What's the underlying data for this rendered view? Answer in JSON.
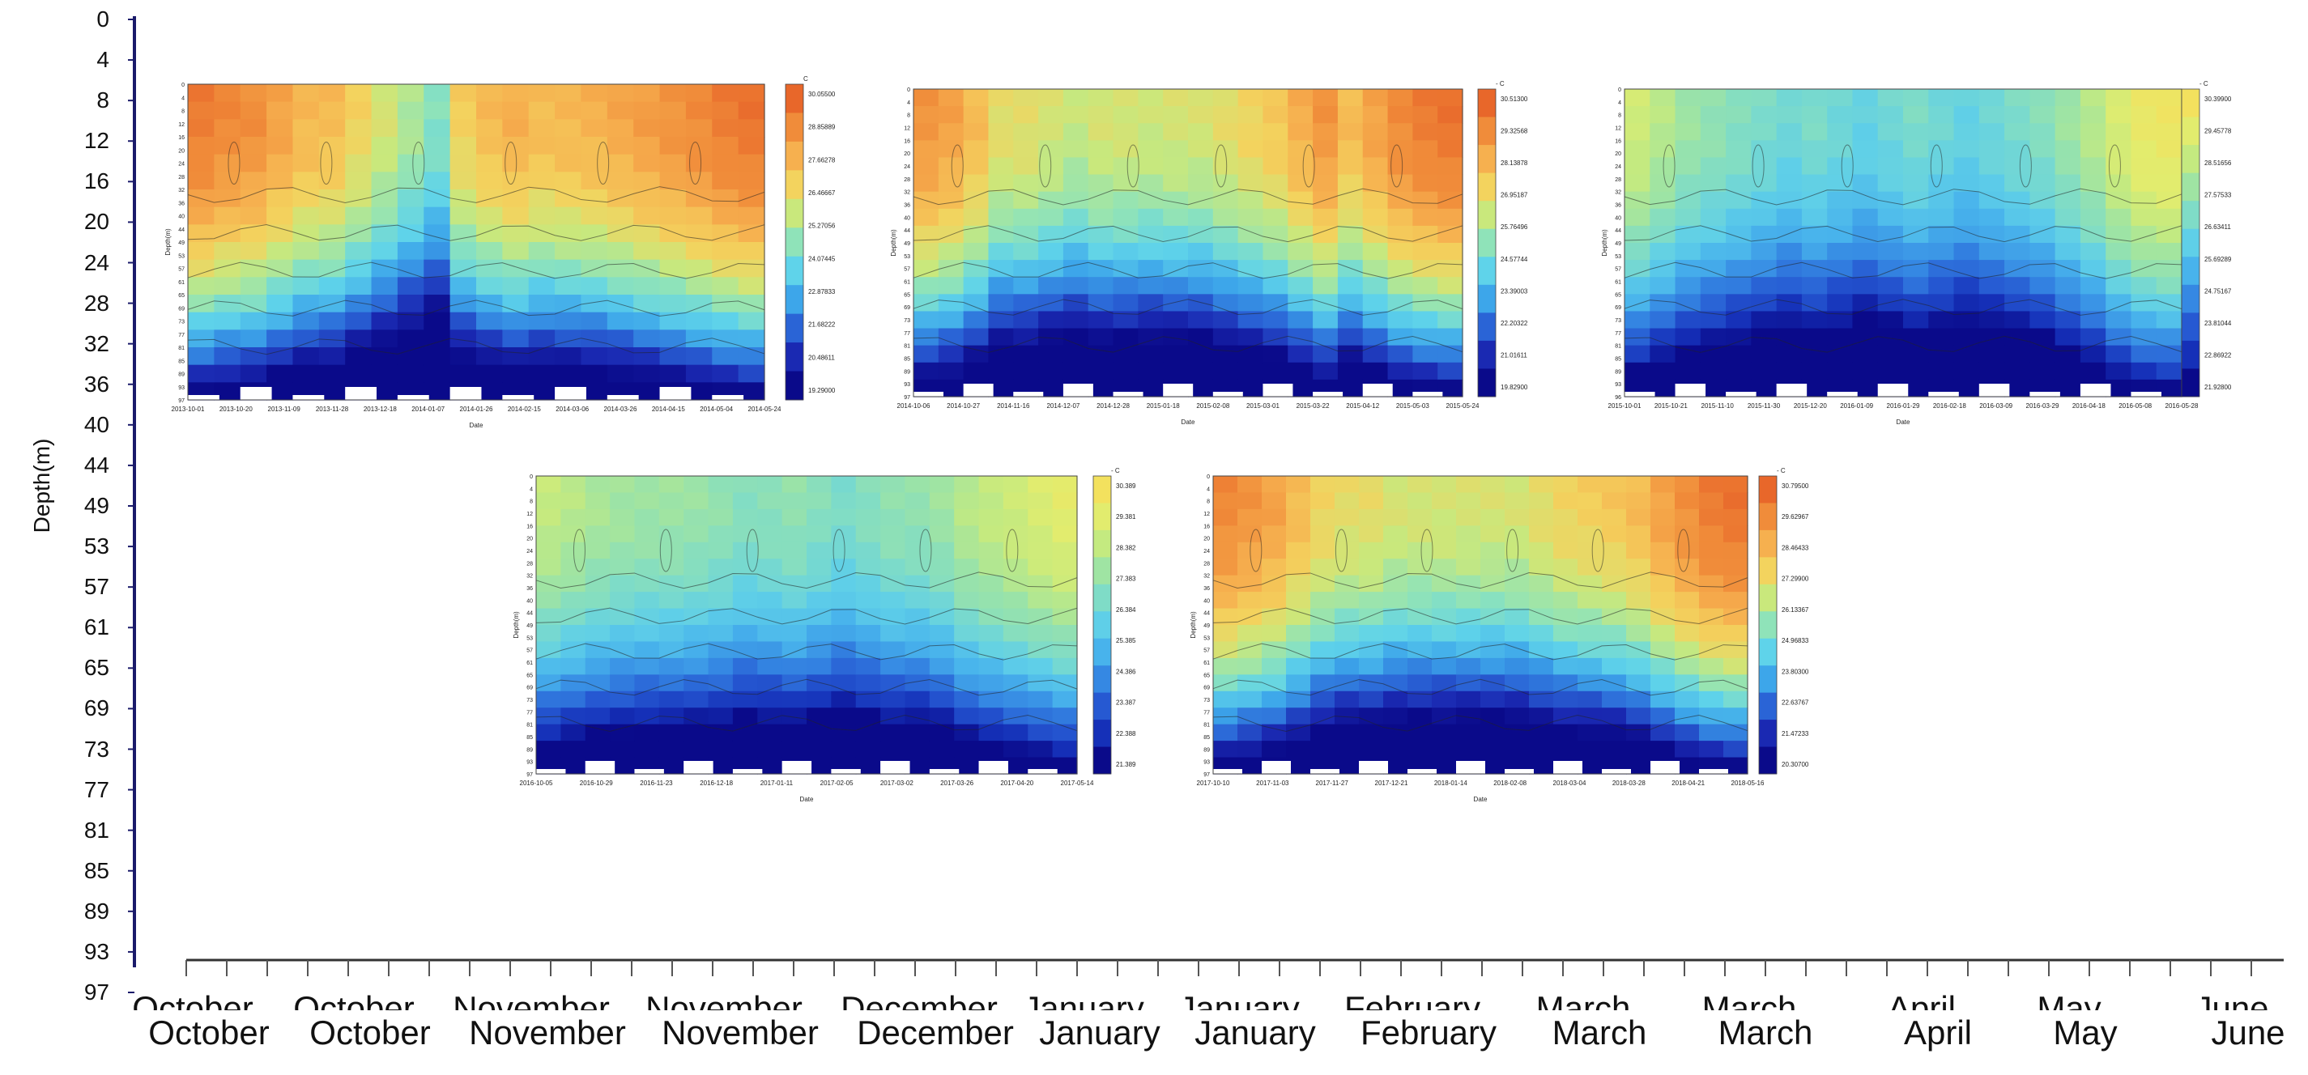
{
  "chart_data": {
    "type": "heatmap",
    "outer_axes": {
      "ylabel": "Depth(m)",
      "y_ticks": [
        "0",
        "4",
        "8",
        "12",
        "16",
        "20",
        "24",
        "28",
        "32",
        "36",
        "40",
        "44",
        "49",
        "53",
        "57",
        "61",
        "65",
        "69",
        "73",
        "77",
        "81",
        "85",
        "89",
        "93",
        "97"
      ],
      "x_ticks": [
        "October",
        "October",
        "November",
        "November",
        "December",
        "January",
        "January",
        "February",
        "March",
        "March",
        "April",
        "May",
        "June"
      ],
      "x_ticks_clipped": [
        "October",
        "October",
        "November",
        "November",
        "December",
        "January",
        "January",
        "February",
        "March",
        "March",
        "April",
        "May",
        "June"
      ]
    },
    "panels": [
      {
        "colorbar_unit": "C",
        "colorbar_ticks": [
          "30.05500",
          "28.85889",
          "27.66278",
          "26.46667",
          "25.27056",
          "24.07445",
          "22.87833",
          "21.68222",
          "20.48611",
          "19.29000"
        ],
        "colorbar_colors": [
          "#e8672a",
          "#f08c3a",
          "#f6b04f",
          "#f3d35e",
          "#c9e87c",
          "#8fe3b9",
          "#5fd3ea",
          "#3da6ea",
          "#2a64d6",
          "#1a29b2",
          "#0a0a8a"
        ],
        "ylabel": "Depth(m)",
        "xlabel": "Date",
        "depth_ticks": [
          "0",
          "4",
          "8",
          "12",
          "16",
          "20",
          "24",
          "28",
          "32",
          "36",
          "40",
          "44",
          "49",
          "53",
          "57",
          "61",
          "65",
          "69",
          "73",
          "77",
          "81",
          "85",
          "89",
          "93",
          "97"
        ],
        "date_ticks": [
          "2013-10-01",
          "2013-10-20",
          "2013-11-09",
          "2013-11-28",
          "2013-12-18",
          "2014-01-07",
          "2014-01-26",
          "2014-02-15",
          "2014-03-06",
          "2014-03-26",
          "2014-04-15",
          "2014-05-04",
          "2014-05-24"
        ],
        "warm_profile": [
          0.95,
          0.9,
          0.88,
          0.8,
          0.72,
          0.7,
          0.6,
          0.5,
          0.4,
          0.3,
          0.62,
          0.7,
          0.75,
          0.7,
          0.72,
          0.74,
          0.78,
          0.82,
          0.86,
          0.9,
          0.95,
          0.98
        ]
      },
      {
        "colorbar_unit": "- C",
        "colorbar_ticks": [
          "30.51300",
          "29.32568",
          "28.13878",
          "26.95187",
          "25.76496",
          "24.57744",
          "23.39003",
          "22.20322",
          "21.01611",
          "19.82900"
        ],
        "colorbar_colors": [
          "#e8672a",
          "#f08c3a",
          "#f6b04f",
          "#f3d35e",
          "#c9e87c",
          "#8fe3b9",
          "#5fd3ea",
          "#3da6ea",
          "#2a64d6",
          "#1a29b2",
          "#0a0a8a"
        ],
        "ylabel": "Depth(m)",
        "xlabel": "Date",
        "depth_ticks": [
          "0",
          "4",
          "8",
          "12",
          "16",
          "20",
          "24",
          "28",
          "32",
          "36",
          "40",
          "44",
          "49",
          "53",
          "57",
          "61",
          "65",
          "69",
          "73",
          "77",
          "81",
          "85",
          "89",
          "93",
          "97"
        ],
        "date_ticks": [
          "2014-10-06",
          "2014-10-27",
          "2014-11-16",
          "2014-12-07",
          "2014-12-28",
          "2015-01-18",
          "2015-02-08",
          "2015-03-01",
          "2015-03-22",
          "2015-04-12",
          "2015-05-03",
          "2015-05-24"
        ],
        "warm_profile": [
          0.85,
          0.8,
          0.7,
          0.55,
          0.55,
          0.5,
          0.45,
          0.5,
          0.5,
          0.48,
          0.5,
          0.5,
          0.55,
          0.6,
          0.65,
          0.75,
          0.85,
          0.7,
          0.8,
          0.9,
          0.95,
          0.98
        ]
      },
      {
        "colorbar_unit": "- C",
        "colorbar_ticks": [
          "30.39900",
          "29.45778",
          "28.51656",
          "27.57533",
          "26.63411",
          "25.69289",
          "24.75167",
          "23.81044",
          "22.86922",
          "21.92800"
        ],
        "colorbar_colors": [
          "#f3e15e",
          "#e2ec6e",
          "#c4ea80",
          "#9fe4a3",
          "#7fdcc7",
          "#5fcfe8",
          "#48b3ec",
          "#3588e3",
          "#2659d2",
          "#1530b8",
          "#0a0a8a"
        ],
        "ylabel": "Depth(m)",
        "xlabel": "Date",
        "depth_ticks": [
          "0",
          "4",
          "8",
          "12",
          "16",
          "20",
          "24",
          "28",
          "32",
          "36",
          "40",
          "44",
          "49",
          "53",
          "57",
          "61",
          "65",
          "69",
          "73",
          "77",
          "81",
          "85",
          "89",
          "93",
          "96"
        ],
        "date_ticks": [
          "2015-10-01",
          "2015-10-21",
          "2015-11-10",
          "2015-11-30",
          "2015-12-20",
          "2016-01-09",
          "2016-01-29",
          "2016-02-18",
          "2016-03-09",
          "2016-03-29",
          "2016-04-18",
          "2016-05-08",
          "2016-05-28"
        ],
        "warm_profile": [
          0.8,
          0.7,
          0.6,
          0.55,
          0.5,
          0.45,
          0.4,
          0.45,
          0.4,
          0.35,
          0.4,
          0.45,
          0.4,
          0.35,
          0.4,
          0.45,
          0.5,
          0.6,
          0.7,
          0.85,
          0.95,
          0.98
        ]
      },
      {
        "colorbar_unit": "- C",
        "colorbar_ticks": [
          "30.389",
          "29.381",
          "28.382",
          "27.383",
          "26.384",
          "25.385",
          "24.386",
          "23.387",
          "22.388",
          "21.389"
        ],
        "colorbar_colors": [
          "#f3e15e",
          "#e2ec6e",
          "#c4ea80",
          "#9fe4a3",
          "#7fdcc7",
          "#5fcfe8",
          "#48b3ec",
          "#3588e3",
          "#2659d2",
          "#1530b8",
          "#0a0a8a"
        ],
        "ylabel": "Depth(m)",
        "xlabel": "Date",
        "depth_ticks": [
          "0",
          "4",
          "8",
          "12",
          "16",
          "20",
          "24",
          "28",
          "32",
          "36",
          "40",
          "44",
          "49",
          "53",
          "57",
          "61",
          "65",
          "69",
          "73",
          "77",
          "81",
          "85",
          "89",
          "93",
          "97"
        ],
        "date_ticks": [
          "2016-10-05",
          "2016-10-29",
          "2016-11-23",
          "2016-12-18",
          "2017-01-11",
          "2017-02-05",
          "2017-03-02",
          "2017-03-26",
          "2017-04-20",
          "2017-05-14"
        ],
        "warm_profile": [
          0.75,
          0.7,
          0.65,
          0.62,
          0.6,
          0.6,
          0.58,
          0.55,
          0.5,
          0.52,
          0.55,
          0.5,
          0.45,
          0.5,
          0.55,
          0.55,
          0.6,
          0.7,
          0.75,
          0.8,
          0.85,
          0.9
        ]
      },
      {
        "colorbar_unit": "- C",
        "colorbar_ticks": [
          "30.79500",
          "29.62967",
          "28.46433",
          "27.29900",
          "26.13367",
          "24.96833",
          "23.80300",
          "22.63767",
          "21.47233",
          "20.30700"
        ],
        "colorbar_colors": [
          "#e8672a",
          "#f08c3a",
          "#f6b04f",
          "#f3d35e",
          "#c9e87c",
          "#8fe3b9",
          "#5fd3ea",
          "#3da6ea",
          "#2a64d6",
          "#1a29b2",
          "#0a0a8a"
        ],
        "ylabel": "Depth(m)",
        "xlabel": "Date",
        "depth_ticks": [
          "0",
          "4",
          "8",
          "12",
          "16",
          "20",
          "24",
          "28",
          "32",
          "36",
          "40",
          "44",
          "49",
          "53",
          "57",
          "61",
          "65",
          "69",
          "73",
          "77",
          "81",
          "85",
          "89",
          "93",
          "97"
        ],
        "date_ticks": [
          "2017-10-10",
          "2017-11-03",
          "2017-11-27",
          "2017-12-21",
          "2018-01-14",
          "2018-02-08",
          "2018-03-04",
          "2018-03-28",
          "2018-04-21",
          "2018-05-16"
        ],
        "warm_profile": [
          0.9,
          0.85,
          0.8,
          0.7,
          0.6,
          0.55,
          0.55,
          0.5,
          0.5,
          0.5,
          0.5,
          0.5,
          0.5,
          0.55,
          0.6,
          0.62,
          0.65,
          0.7,
          0.8,
          0.88,
          0.95,
          0.98
        ]
      }
    ]
  }
}
